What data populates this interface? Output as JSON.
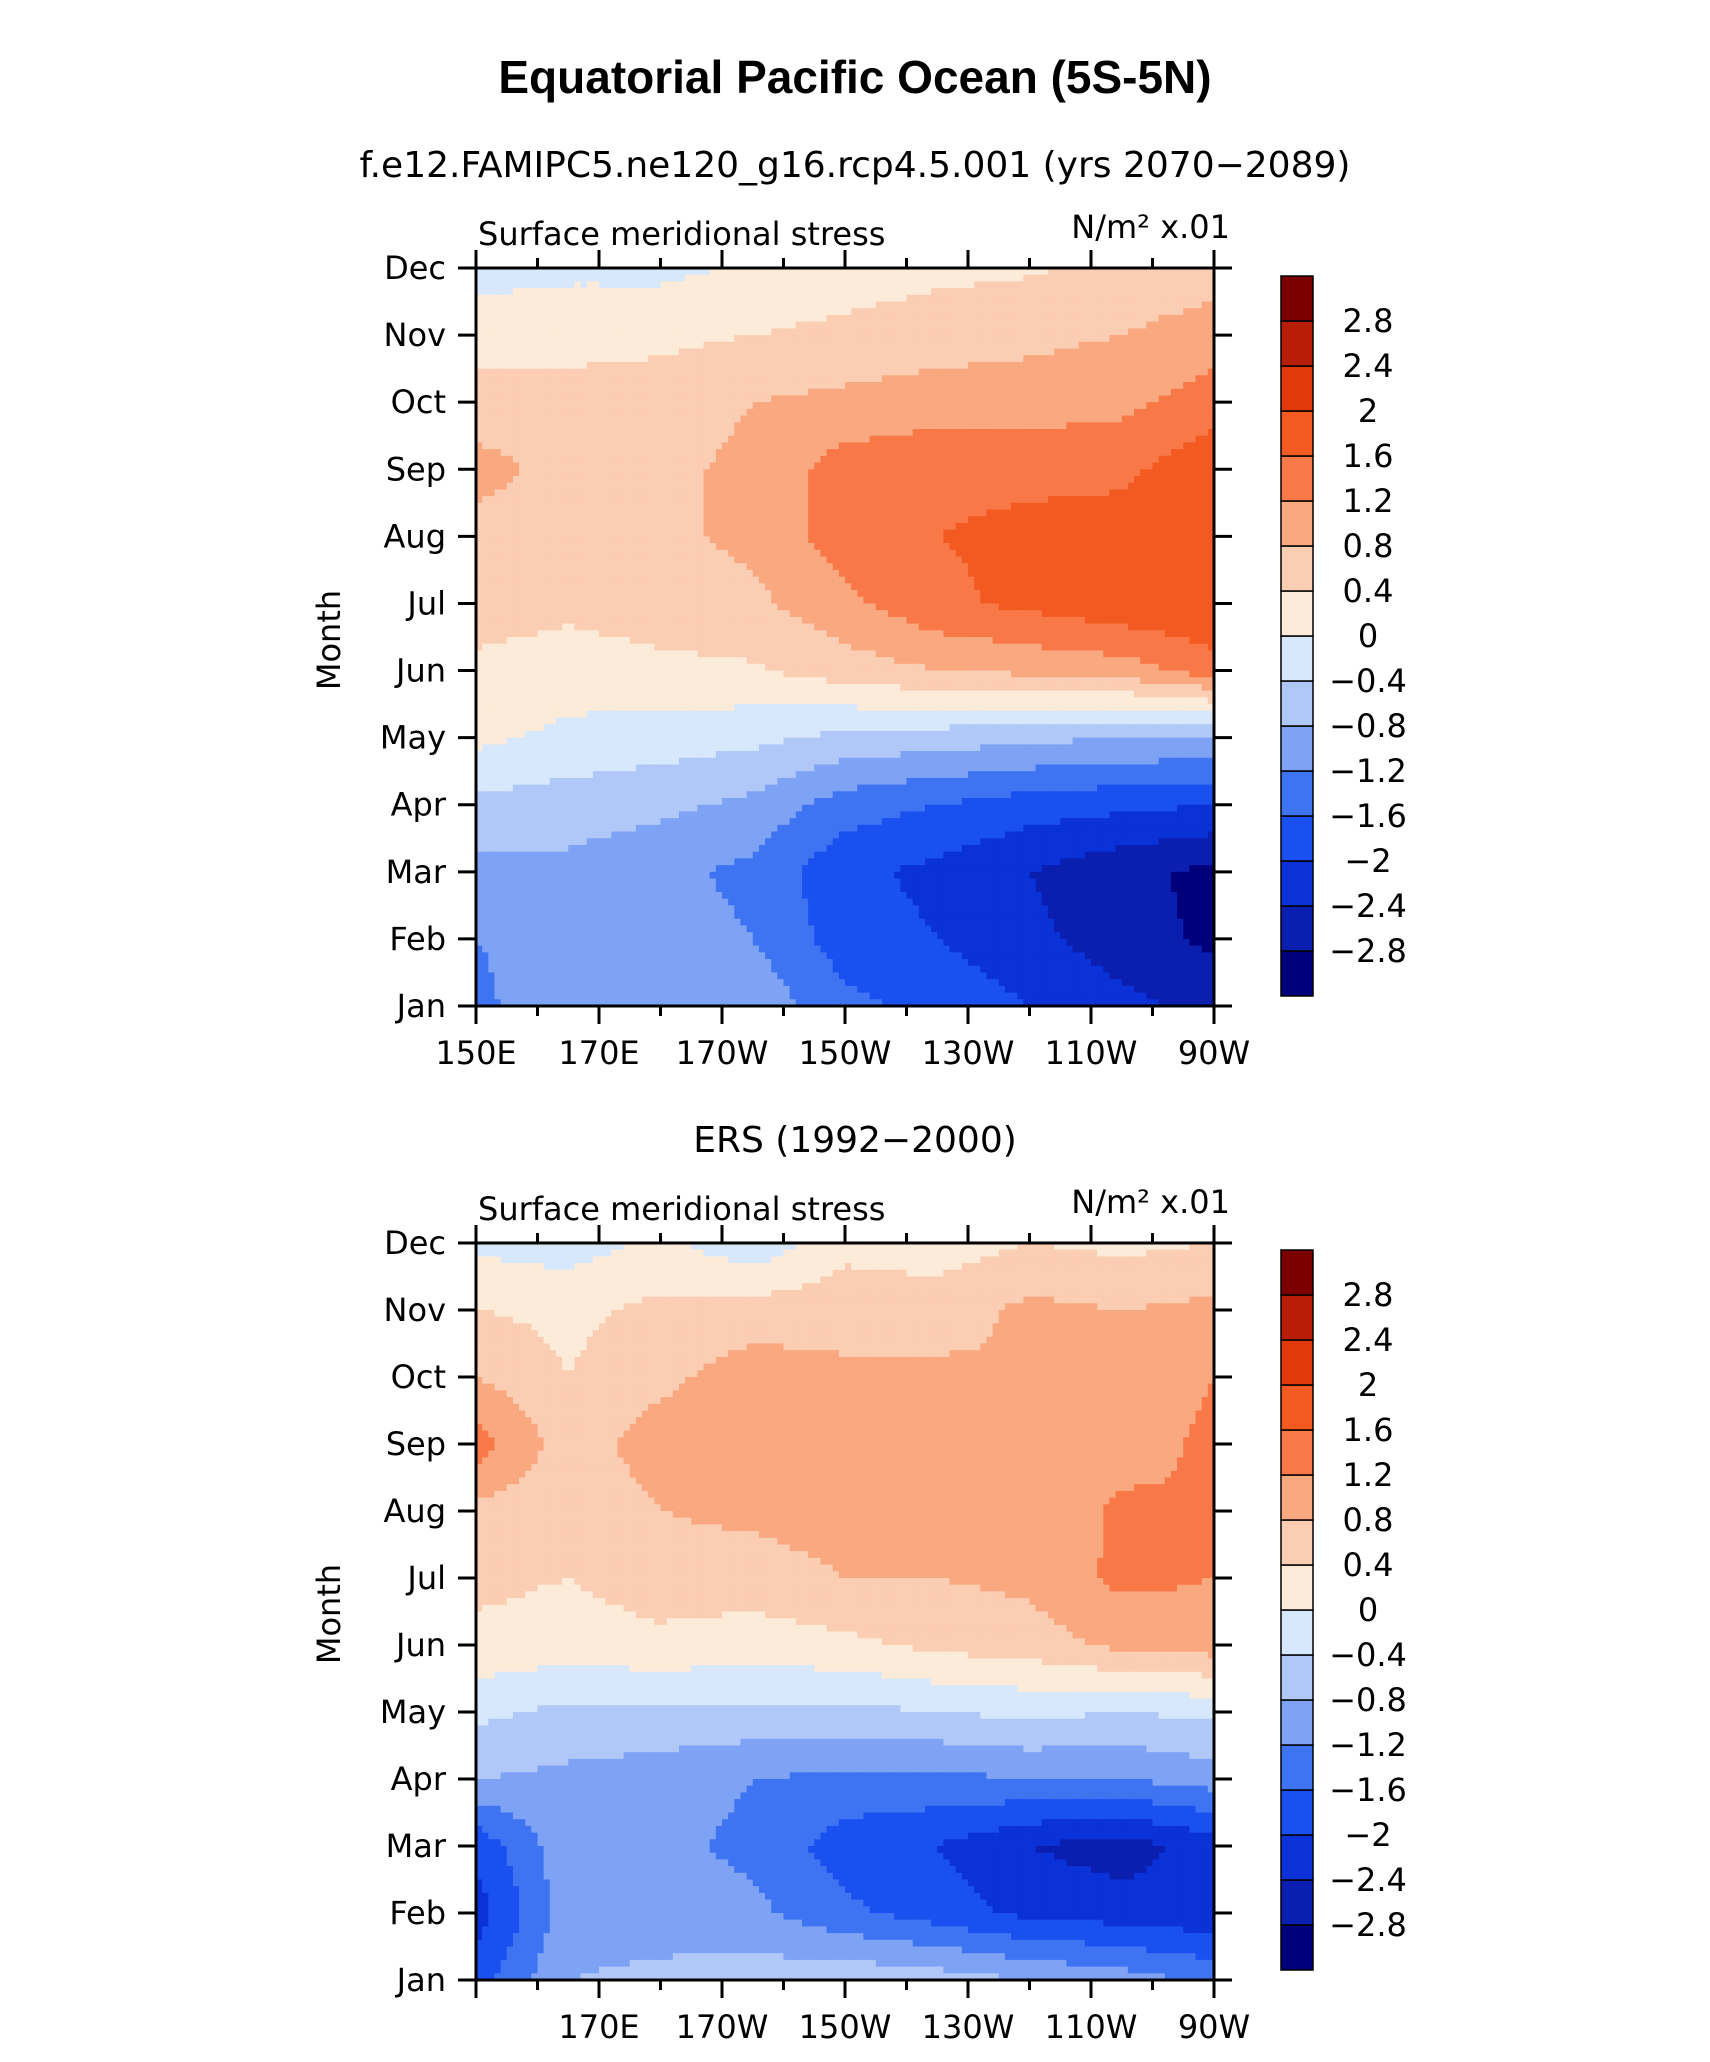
{
  "figure": {
    "title": "Equatorial Pacific Ocean (5S-5N)"
  },
  "palette": {
    "levels": [
      -2.8,
      -2.4,
      -2,
      -1.6,
      -1.2,
      -0.8,
      -0.4,
      0,
      0.4,
      0.8,
      1.2,
      1.6,
      2,
      2.4,
      2.8
    ],
    "level_labels": [
      "-2.8",
      "-2.4",
      "-2",
      "-1.6",
      "-1.2",
      "-0.8",
      "-0.4",
      "0",
      "0.4",
      "0.8",
      "1.2",
      "1.6",
      "2",
      "2.4",
      "2.8"
    ],
    "colors": [
      "#00007a",
      "#0a1fb0",
      "#0b31d8",
      "#1a50f0",
      "#3e74f2",
      "#7ea2f4",
      "#b0c8f8",
      "#d8e8fc",
      "#fdebd9",
      "#fbcdb3",
      "#f9a87f",
      "#f87848",
      "#f25a22",
      "#e03a0a",
      "#b81e06",
      "#7c0000"
    ]
  },
  "chart_data": [
    {
      "type": "heatmap",
      "title": "f.e12.FAMIPC5.ne120_g16.rcp4.5.001 (yrs 2070−2089)",
      "left_label": "Surface  meridional  stress",
      "units_label": "N/m²  x.01",
      "ylabel": "Month",
      "xlabel": "",
      "x_tick_labels": [
        "150E",
        "170E",
        "170W",
        "150W",
        "130W",
        "110W",
        "90W"
      ],
      "y_tick_labels": [
        "Jan",
        "Feb",
        "Mar",
        "Apr",
        "May",
        "Jun",
        "Jul",
        "Aug",
        "Sep",
        "Oct",
        "Nov",
        "Dec"
      ],
      "x_range_lon_east": [
        150,
        270
      ],
      "y_range": [
        "Jan",
        "Dec"
      ],
      "contour_levels_from": "palette.levels",
      "x_lon_east": [
        150,
        165,
        180,
        195,
        210,
        225,
        240,
        255,
        270
      ],
      "z_by_month": [
        [
          -1.3,
          -0.9,
          -0.8,
          -0.9,
          -1.5,
          -1.7,
          -2.0,
          -2.3,
          -2.5
        ],
        [
          -1.2,
          -1.0,
          -1.0,
          -1.2,
          -1.8,
          -2.0,
          -2.3,
          -2.6,
          -2.9
        ],
        [
          -0.9,
          -0.9,
          -1.1,
          -1.3,
          -1.9,
          -2.1,
          -2.4,
          -2.7,
          -2.9
        ],
        [
          -0.5,
          -0.6,
          -0.7,
          -0.9,
          -1.4,
          -1.6,
          -1.8,
          -1.9,
          -2.0
        ],
        [
          0.1,
          -0.1,
          -0.2,
          -0.3,
          -0.5,
          -0.6,
          -0.7,
          -0.8,
          -0.8
        ],
        [
          0.3,
          0.2,
          0.3,
          0.35,
          0.6,
          0.8,
          0.9,
          1.0,
          1.4
        ],
        [
          0.6,
          0.5,
          0.6,
          0.7,
          1.1,
          1.5,
          1.7,
          1.9,
          2.0
        ],
        [
          0.6,
          0.6,
          0.7,
          0.9,
          1.4,
          1.6,
          1.7,
          1.8,
          2.0
        ],
        [
          1.0,
          0.6,
          0.7,
          0.9,
          1.4,
          1.5,
          1.5,
          1.5,
          1.9
        ],
        [
          0.5,
          0.5,
          0.6,
          0.8,
          0.9,
          1.0,
          1.0,
          1.1,
          1.4
        ],
        [
          0.3,
          0.3,
          0.3,
          0.4,
          0.5,
          0.6,
          0.7,
          0.8,
          1.0
        ],
        [
          -0.2,
          -0.1,
          -0.1,
          0.05,
          0.2,
          0.3,
          0.35,
          0.5,
          0.6
        ]
      ]
    },
    {
      "type": "heatmap",
      "title": "ERS (1992−2000)",
      "left_label": "Surface  meridional  stress",
      "units_label": "N/m²  x.01",
      "ylabel": "Month",
      "xlabel": "",
      "x_tick_labels": [
        "170E",
        "170W",
        "150W",
        "130W",
        "110W",
        "90W"
      ],
      "y_tick_labels": [
        "Jan",
        "Feb",
        "Mar",
        "Apr",
        "May",
        "Jun",
        "Jul",
        "Aug",
        "Sep",
        "Oct",
        "Nov",
        "Dec"
      ],
      "x_range_lon_east": [
        150,
        270
      ],
      "y_range": [
        "Jan",
        "Dec"
      ],
      "contour_levels_from": "palette.levels",
      "x_lon_east": [
        150,
        165,
        180,
        195,
        210,
        225,
        240,
        255,
        270
      ],
      "z_by_month": [
        [
          -1.8,
          -0.8,
          -0.7,
          -0.6,
          -0.5,
          -0.6,
          -0.8,
          -1.0,
          -1.3
        ],
        [
          -2.2,
          -1.0,
          -1.0,
          -1.1,
          -1.5,
          -1.8,
          -2.1,
          -2.2,
          -2.3
        ],
        [
          -1.9,
          -0.9,
          -1.1,
          -1.3,
          -1.8,
          -2.0,
          -2.4,
          -2.6,
          -2.2
        ],
        [
          -0.8,
          -0.9,
          -1.0,
          -1.2,
          -1.3,
          -1.3,
          -1.2,
          -1.2,
          -1.0
        ],
        [
          -0.3,
          -0.5,
          -0.5,
          -0.5,
          -0.5,
          -0.4,
          -0.3,
          -0.4,
          -0.3
        ],
        [
          0.3,
          0.2,
          0.3,
          0.2,
          0.3,
          0.5,
          0.6,
          0.9,
          1.0
        ],
        [
          0.5,
          0.4,
          0.6,
          0.6,
          0.8,
          0.8,
          0.9,
          1.3,
          1.2
        ],
        [
          0.7,
          0.5,
          0.8,
          0.9,
          1.0,
          1.0,
          0.8,
          1.3,
          1.2
        ],
        [
          1.4,
          0.6,
          1.0,
          1.0,
          1.0,
          1.0,
          0.8,
          1.0,
          1.3
        ],
        [
          0.8,
          0.4,
          0.7,
          1.0,
          0.9,
          0.9,
          0.8,
          0.9,
          1.2
        ],
        [
          0.4,
          0.3,
          0.5,
          0.6,
          0.6,
          0.6,
          0.9,
          0.8,
          0.9
        ],
        [
          -0.1,
          -0.2,
          0.1,
          -0.3,
          0.3,
          0.2,
          0.4,
          0.3,
          0.4
        ]
      ]
    }
  ]
}
